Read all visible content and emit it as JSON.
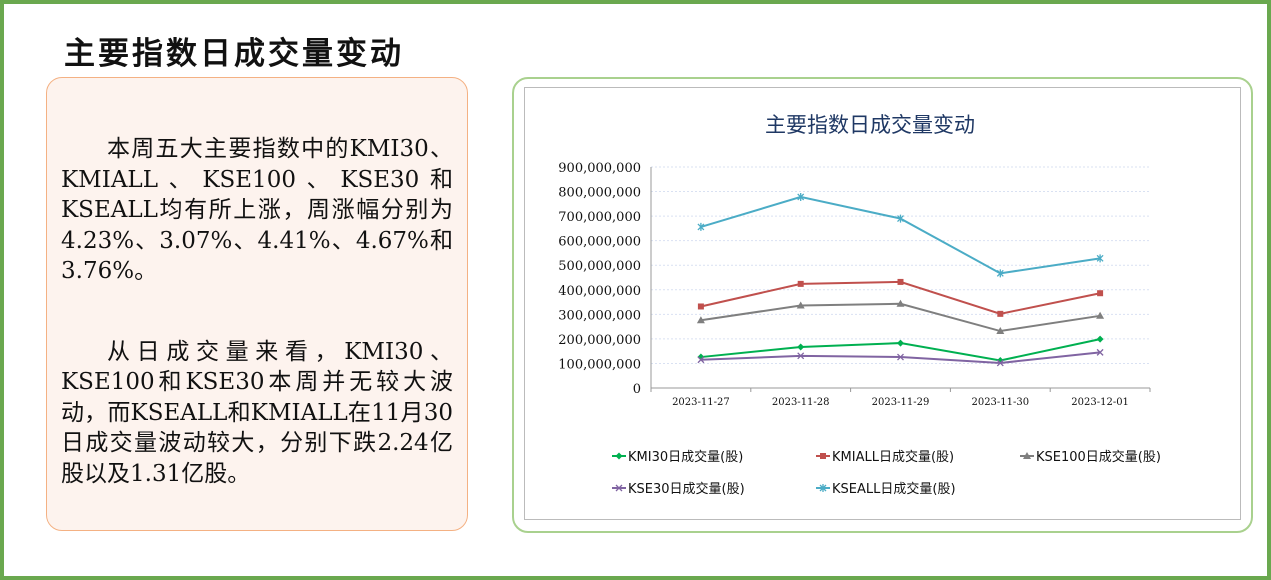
{
  "page_title": "主要指数日成交量变动",
  "paragraphs": [
    "本周五大主要指数中的KMI30、KMIALL、KSE100、KSE30和KSEALL均有所上涨，周涨幅分别为4.23%、3.07%、4.41%、4.67%和3.76%。",
    "从日成交量来看，KMI30、KSE100和KSE30本周并无较大波动，而KSEALL和KMIALL在11月30日成交量波动较大，分别下跌2.24亿股以及1.31亿股。"
  ],
  "chart_data": {
    "type": "line",
    "title": "主要指数日成交量变动",
    "categories": [
      "2023-11-27",
      "2023-11-28",
      "2023-11-29",
      "2023-11-30",
      "2023-12-01"
    ],
    "ylim": [
      0,
      900000000
    ],
    "yticks": [
      "0",
      "100,000,000",
      "200,000,000",
      "300,000,000",
      "400,000,000",
      "500,000,000",
      "600,000,000",
      "700,000,000",
      "800,000,000",
      "900,000,000"
    ],
    "grid": true,
    "legend_position": "bottom",
    "series": [
      {
        "name": "KMI30日成交量(股)",
        "color": "#00b050",
        "marker": "diamond",
        "values": [
          126000000,
          167000000,
          183000000,
          112000000,
          199000000
        ]
      },
      {
        "name": "KMIALL日成交量(股)",
        "color": "#c0504d",
        "marker": "square",
        "values": [
          332000000,
          424000000,
          432000000,
          302000000,
          386000000
        ]
      },
      {
        "name": "KSE100日成交量(股)",
        "color": "#7f7f7f",
        "marker": "triangle",
        "values": [
          276000000,
          336000000,
          343000000,
          232000000,
          294000000
        ]
      },
      {
        "name": "KSE30日成交量(股)",
        "color": "#8064a2",
        "marker": "x",
        "values": [
          115000000,
          131000000,
          126000000,
          102000000,
          145000000
        ]
      },
      {
        "name": "KSEALL日成交量(股)",
        "color": "#4bacc6",
        "marker": "star",
        "values": [
          656000000,
          778000000,
          690000000,
          467000000,
          528000000
        ]
      }
    ]
  }
}
